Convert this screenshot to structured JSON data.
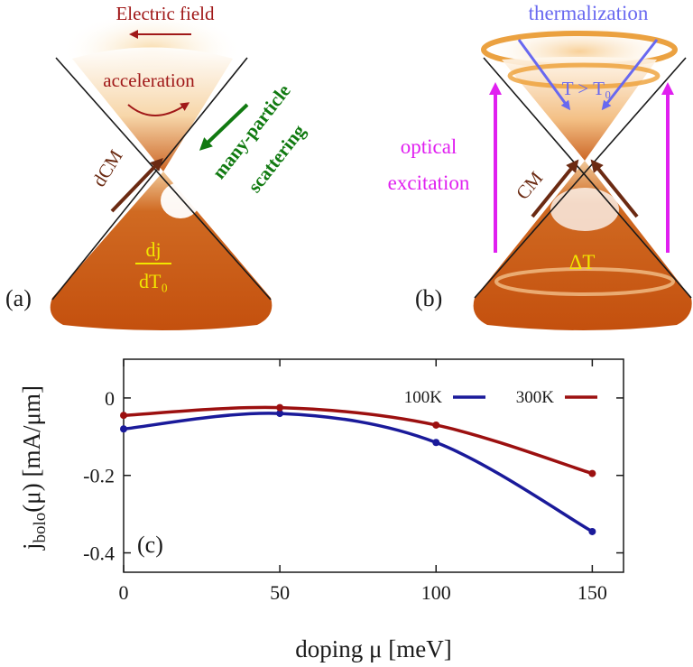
{
  "panel_a": {
    "label": "(a)",
    "electric_field": "Electric field",
    "acceleration": "acceleration",
    "many_particle": "many-particle",
    "scattering": "scattering",
    "dcm": "dCM",
    "dj": "dj",
    "dt0": "dT₀"
  },
  "panel_b": {
    "label": "(b)",
    "thermalization": "thermalization",
    "t_gt_t0": "T > T₀",
    "optical": "optical",
    "excitation": "excitation",
    "cm": "CM",
    "delta_t": "ΔT"
  },
  "colors": {
    "cone_dark": "#c5520f",
    "cone_light": "#f7d6a3",
    "arrow_field": "#a01818",
    "arrow_scatter": "#117a11",
    "arrow_cm": "#6b2a12",
    "arrow_optical": "#e020f0",
    "arrow_therm": "#6868f0",
    "label_yellow": "#f2e600",
    "series_100K": "#1a1a9a",
    "series_300K": "#9c1010"
  },
  "chart_data": {
    "type": "line",
    "panel_label": "(c)",
    "xlabel": "doping μ [meV]",
    "ylabel_main": "j",
    "ylabel_sub": "bolo",
    "ylabel_rest": "(μ) [mA/μm]",
    "xlim": [
      0,
      160
    ],
    "ylim": [
      -0.45,
      0.1
    ],
    "xticks": [
      0,
      50,
      100,
      150
    ],
    "xtick_labels": [
      "0",
      "50",
      "100",
      "150"
    ],
    "yticks": [
      0,
      -0.2,
      -0.4
    ],
    "ytick_labels": [
      "0",
      "-0.2",
      "-0.4"
    ],
    "legend_position": "top-right",
    "series": [
      {
        "name": "100K",
        "color": "#1a1a9a",
        "x": [
          0,
          50,
          100,
          150
        ],
        "y": [
          -0.08,
          -0.04,
          -0.115,
          -0.345
        ]
      },
      {
        "name": "300K",
        "color": "#9c1010",
        "x": [
          0,
          50,
          100,
          150
        ],
        "y": [
          -0.045,
          -0.025,
          -0.07,
          -0.195
        ]
      }
    ]
  }
}
